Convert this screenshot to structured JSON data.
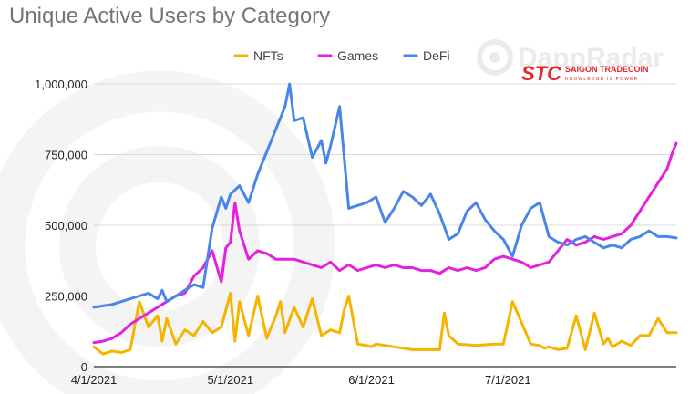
{
  "chart_data": {
    "type": "line",
    "title": "Unique Active Users by Category",
    "xlabel": "",
    "ylabel": "",
    "ylim": [
      0,
      1000000
    ],
    "y_ticks": [
      0,
      250000,
      500000,
      750000,
      1000000
    ],
    "y_tick_labels": [
      "0",
      "250,000",
      "500,000",
      "750,000",
      "1,000,000"
    ],
    "x_range": [
      0,
      128
    ],
    "x_ticks": [
      0,
      30,
      61,
      91
    ],
    "x_tick_labels": [
      "4/1/2021",
      "5/1/2021",
      "6/1/2021",
      "7/1/2021"
    ],
    "x_unit": "days since 4/1/2021",
    "legend_position": "top",
    "gridlines": true,
    "series": [
      {
        "name": "NFTs",
        "color": "#f4b400",
        "x": [
          0,
          2,
          4,
          6,
          8,
          10,
          12,
          14,
          15,
          16,
          18,
          20,
          22,
          24,
          26,
          28,
          30,
          31,
          32,
          34,
          36,
          38,
          40,
          41,
          42,
          44,
          46,
          48,
          50,
          52,
          54,
          55,
          56,
          58,
          60,
          61,
          62,
          66,
          70,
          74,
          76,
          77,
          78,
          80,
          84,
          88,
          90,
          92,
          96,
          98,
          99,
          100,
          102,
          104,
          106,
          108,
          110,
          112,
          113,
          114,
          116,
          118,
          120,
          122,
          124,
          126,
          128
        ],
        "values": [
          70000,
          45000,
          55000,
          50000,
          60000,
          230000,
          140000,
          180000,
          90000,
          170000,
          80000,
          130000,
          110000,
          160000,
          120000,
          140000,
          260000,
          90000,
          230000,
          110000,
          250000,
          100000,
          180000,
          230000,
          120000,
          210000,
          140000,
          240000,
          110000,
          130000,
          120000,
          200000,
          250000,
          80000,
          75000,
          70000,
          80000,
          70000,
          60000,
          60000,
          60000,
          190000,
          110000,
          80000,
          75000,
          80000,
          80000,
          230000,
          80000,
          75000,
          65000,
          70000,
          60000,
          65000,
          180000,
          60000,
          190000,
          80000,
          100000,
          70000,
          90000,
          75000,
          110000,
          110000,
          170000,
          120000,
          120000
        ]
      },
      {
        "name": "Games",
        "color": "#e321df",
        "x": [
          0,
          2,
          4,
          6,
          8,
          10,
          12,
          14,
          16,
          18,
          20,
          22,
          24,
          26,
          28,
          29,
          30,
          31,
          32,
          34,
          36,
          38,
          40,
          42,
          44,
          46,
          48,
          50,
          52,
          54,
          56,
          58,
          60,
          62,
          64,
          66,
          68,
          70,
          72,
          74,
          76,
          78,
          80,
          82,
          84,
          86,
          88,
          90,
          92,
          94,
          96,
          98,
          100,
          102,
          104,
          106,
          108,
          110,
          112,
          114,
          116,
          118,
          120,
          122,
          124,
          126,
          127,
          128
        ],
        "values": [
          85000,
          90000,
          100000,
          120000,
          150000,
          170000,
          190000,
          210000,
          230000,
          250000,
          260000,
          320000,
          350000,
          410000,
          300000,
          420000,
          440000,
          580000,
          480000,
          380000,
          410000,
          400000,
          380000,
          380000,
          380000,
          370000,
          360000,
          350000,
          370000,
          340000,
          360000,
          340000,
          350000,
          360000,
          350000,
          360000,
          350000,
          350000,
          340000,
          340000,
          330000,
          350000,
          340000,
          350000,
          340000,
          350000,
          380000,
          390000,
          380000,
          370000,
          350000,
          360000,
          370000,
          410000,
          450000,
          430000,
          440000,
          460000,
          450000,
          460000,
          470000,
          500000,
          550000,
          600000,
          650000,
          700000,
          750000,
          790000
        ]
      },
      {
        "name": "DeFi",
        "color": "#4a86e8",
        "x": [
          0,
          2,
          4,
          6,
          8,
          10,
          12,
          14,
          15,
          16,
          18,
          20,
          22,
          24,
          26,
          28,
          29,
          30,
          32,
          34,
          36,
          38,
          40,
          42,
          43,
          44,
          46,
          48,
          50,
          51,
          52,
          54,
          56,
          58,
          60,
          62,
          64,
          66,
          68,
          70,
          72,
          74,
          76,
          78,
          80,
          82,
          84,
          86,
          88,
          90,
          92,
          94,
          96,
          98,
          100,
          102,
          104,
          106,
          108,
          110,
          112,
          114,
          116,
          118,
          120,
          122,
          124,
          126,
          128
        ],
        "values": [
          210000,
          215000,
          220000,
          230000,
          240000,
          250000,
          260000,
          240000,
          270000,
          230000,
          250000,
          270000,
          290000,
          280000,
          490000,
          600000,
          560000,
          610000,
          640000,
          580000,
          680000,
          760000,
          840000,
          920000,
          1000000,
          870000,
          880000,
          740000,
          800000,
          720000,
          780000,
          920000,
          560000,
          570000,
          580000,
          600000,
          510000,
          560000,
          620000,
          600000,
          570000,
          610000,
          540000,
          450000,
          470000,
          550000,
          580000,
          520000,
          480000,
          450000,
          390000,
          500000,
          560000,
          580000,
          460000,
          440000,
          430000,
          450000,
          460000,
          440000,
          420000,
          430000,
          420000,
          450000,
          460000,
          480000,
          460000,
          460000,
          455000
        ]
      }
    ]
  },
  "watermark": {
    "brand": "DappRadar"
  },
  "logo": {
    "mark": "STC",
    "name": "SAIGON TRADECOIN",
    "tagline": "KNOWLEDGE IS POWER",
    "color": "#e8242b"
  }
}
